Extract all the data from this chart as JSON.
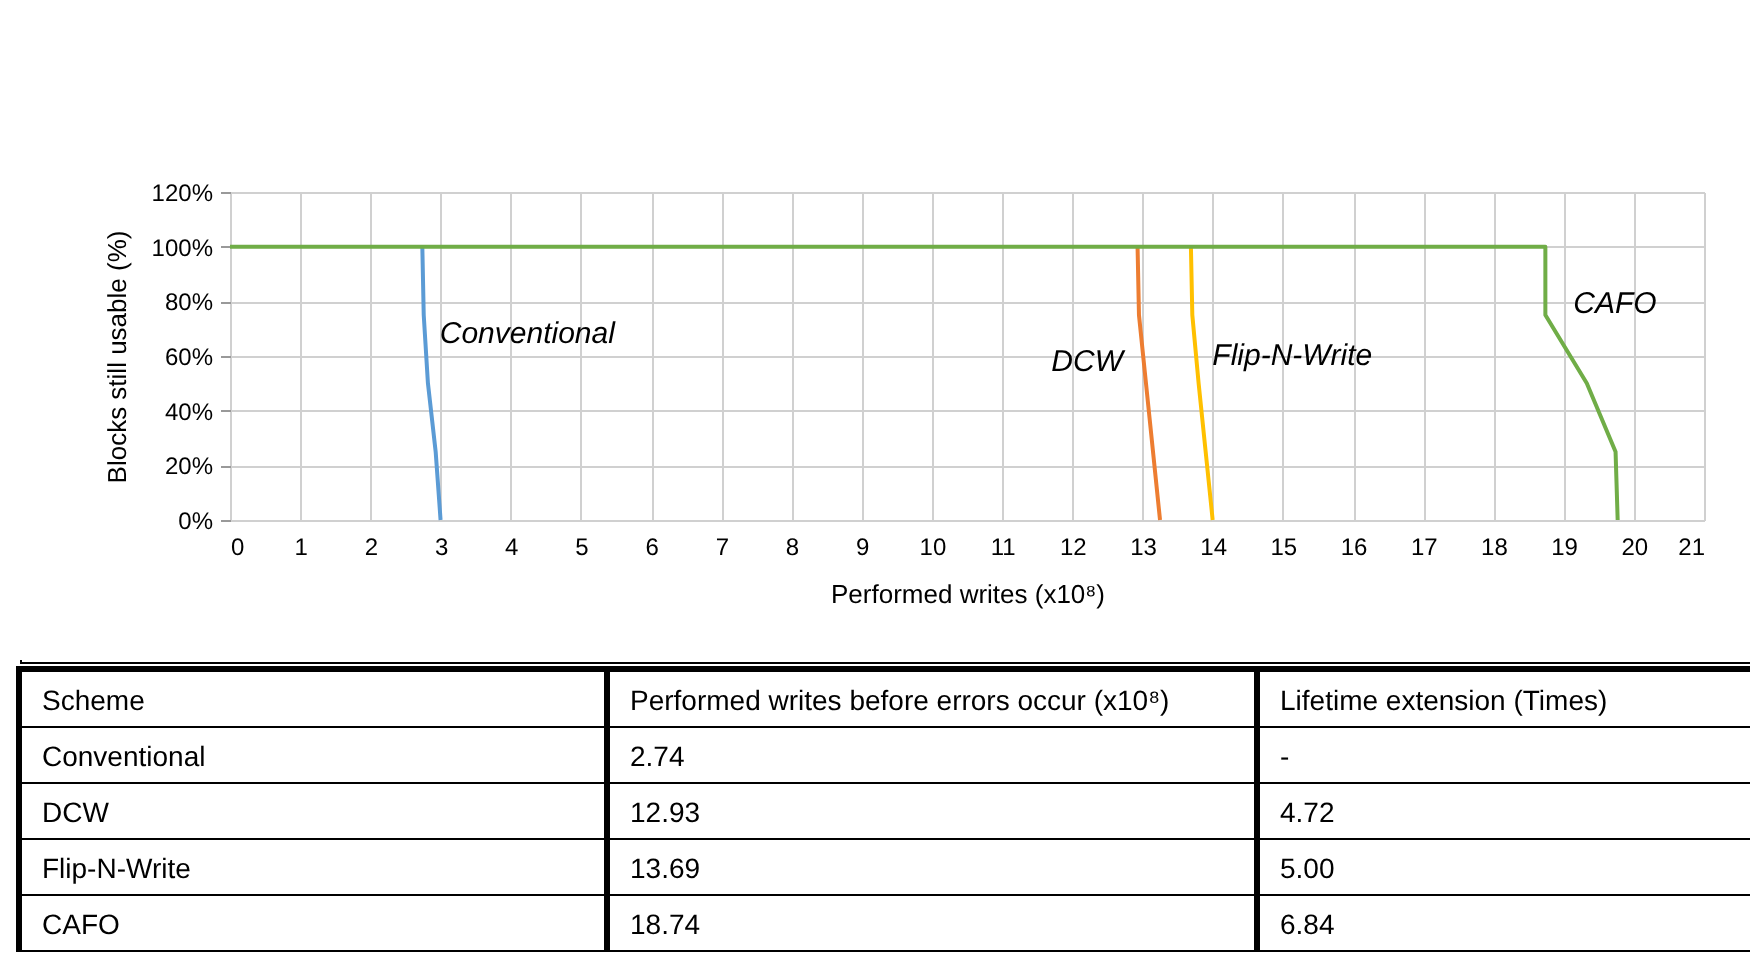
{
  "chart_data": {
    "type": "line",
    "xlabel": "Performed writes (x10⁸)",
    "ylabel": "Blocks still usable (%)",
    "xlim": [
      0,
      21
    ],
    "xticks": [
      0,
      1,
      2,
      3,
      4,
      5,
      6,
      7,
      8,
      9,
      10,
      11,
      12,
      13,
      14,
      15,
      16,
      17,
      18,
      19,
      20,
      21
    ],
    "ylim": [
      0,
      120
    ],
    "yticks": [
      {
        "value": 0,
        "label": "0%"
      },
      {
        "value": 20,
        "label": "20%"
      },
      {
        "value": 40,
        "label": "40%"
      },
      {
        "value": 60,
        "label": "60%"
      },
      {
        "value": 80,
        "label": "80%"
      },
      {
        "value": 100,
        "label": "100%"
      },
      {
        "value": 120,
        "label": "120%"
      }
    ],
    "grid": true,
    "legend": false,
    "marker": "none",
    "line_style": "solid",
    "series": [
      {
        "name": "Conventional",
        "color": "#5b9bd5",
        "x": [
          2.74,
          2.76,
          2.82,
          2.93,
          3.0
        ],
        "values": [
          100,
          75,
          50,
          25,
          0
        ]
      },
      {
        "name": "DCW",
        "color": "#ed7d31",
        "x": [
          12.93,
          12.95,
          13.05,
          13.15,
          13.25
        ],
        "values": [
          100,
          75,
          50,
          25,
          0
        ]
      },
      {
        "name": "Flip-N-Write",
        "color": "#ffc000",
        "x": [
          13.69,
          13.71,
          13.8,
          13.9,
          14.0
        ],
        "values": [
          100,
          75,
          50,
          25,
          0
        ]
      },
      {
        "name": "CAFO",
        "color": "#70ad47",
        "x": [
          0,
          18.74,
          18.74,
          19.33,
          19.74,
          19.77
        ],
        "values": [
          100,
          100,
          75,
          50,
          25,
          0
        ]
      }
    ],
    "annotations": [
      "Scheme",
      "Performed writes before errors occur (x10⁸)",
      "Lifetime extension (Times)",
      "Conventional",
      "2.74",
      "-",
      "DCW",
      "12.93",
      "4.72",
      "Flip-N-Write",
      "13.69",
      "5.00",
      "CAFO",
      "18.74",
      "6.84"
    ]
  }
}
